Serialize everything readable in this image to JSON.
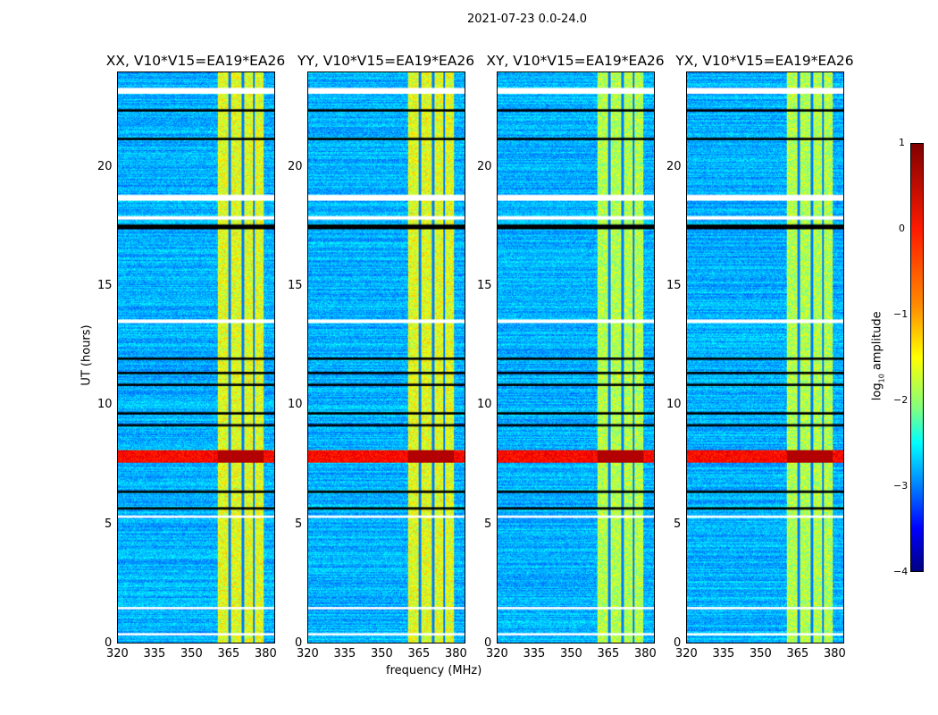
{
  "chart_data": {
    "type": "heatmap",
    "title": "2021-07-23 0.0-24.0",
    "xlabel": "frequency (MHz)",
    "ylabel": "UT (hours)",
    "xlim": [
      320,
      384
    ],
    "ylim": [
      0,
      24
    ],
    "xticks": [
      "320",
      "335",
      "350",
      "365",
      "380"
    ],
    "yticks": [
      "0",
      "5",
      "10",
      "15",
      "20"
    ],
    "panels": [
      {
        "title": "XX, V10*V15=EA19*EA26"
      },
      {
        "title": "YY, V10*V15=EA19*EA26"
      },
      {
        "title": "XY, V10*V15=EA19*EA26"
      },
      {
        "title": "YX, V10*V15=EA19*EA26"
      }
    ],
    "bright_band_mhz": [
      360.5,
      379.5
    ],
    "band_gaps_mhz": [
      365.5,
      371,
      375.5
    ],
    "rfi_hours": [
      7.6,
      8.1
    ],
    "flagged_white_hours": [
      [
        23.1,
        23.35
      ],
      [
        18.6,
        18.85
      ],
      [
        17.8,
        17.95
      ],
      [
        13.45,
        13.6
      ],
      [
        5.25,
        5.35
      ],
      [
        1.4,
        1.5
      ],
      [
        0.3,
        0.4
      ]
    ],
    "flagged_black_hours": [
      [
        22.35,
        22.45
      ],
      [
        21.15,
        21.25
      ],
      [
        17.4,
        17.6
      ],
      [
        11.9,
        12.0
      ],
      [
        11.3,
        11.4
      ],
      [
        10.8,
        10.9
      ],
      [
        9.6,
        9.7
      ],
      [
        9.1,
        9.2
      ],
      [
        6.3,
        6.4
      ],
      [
        5.6,
        5.7
      ]
    ],
    "colorbar": {
      "label": "log10 amplitude",
      "label_main": "log",
      "label_sub": "10",
      "label_rest": " amplitude",
      "range": [
        -4,
        1
      ],
      "ticks": [
        "1",
        "0",
        "−1",
        "−2",
        "−3",
        "−4"
      ]
    }
  }
}
